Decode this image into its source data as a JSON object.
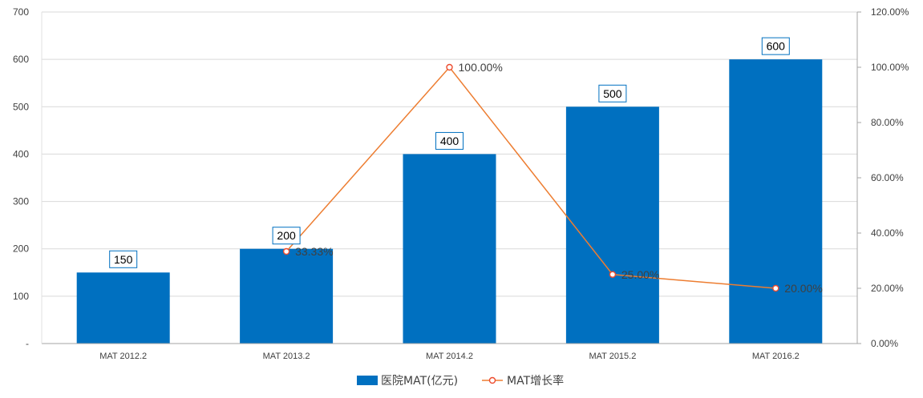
{
  "chart_data": {
    "type": "bar",
    "categories": [
      "MAT 2012.2",
      "MAT 2013.2",
      "MAT 2014.2",
      "MAT 2015.2",
      "MAT 2016.2"
    ],
    "series": [
      {
        "name": "医院MAT(亿元)",
        "type": "bar",
        "axis": "left",
        "color": "#0070C0",
        "values": [
          150,
          200,
          400,
          500,
          600
        ],
        "labels": [
          "150",
          "200",
          "400",
          "500",
          "600"
        ]
      },
      {
        "name": "MAT增长率",
        "type": "line",
        "axis": "right",
        "color": "#ED7D31",
        "values": [
          null,
          33.33,
          100.0,
          25.0,
          20.0
        ],
        "labels": [
          "",
          "33.33%",
          "100.00%",
          "25.00%",
          "20.00%"
        ]
      }
    ],
    "ylim_left": [
      0,
      700
    ],
    "yticks_left": [
      "-",
      "100",
      "200",
      "300",
      "400",
      "500",
      "600",
      "700"
    ],
    "ylim_right": [
      0,
      120
    ],
    "yticks_right": [
      "0.00%",
      "20.00%",
      "40.00%",
      "60.00%",
      "80.00%",
      "100.00%",
      "120.00%"
    ],
    "grid": true,
    "legend_position": "bottom"
  }
}
